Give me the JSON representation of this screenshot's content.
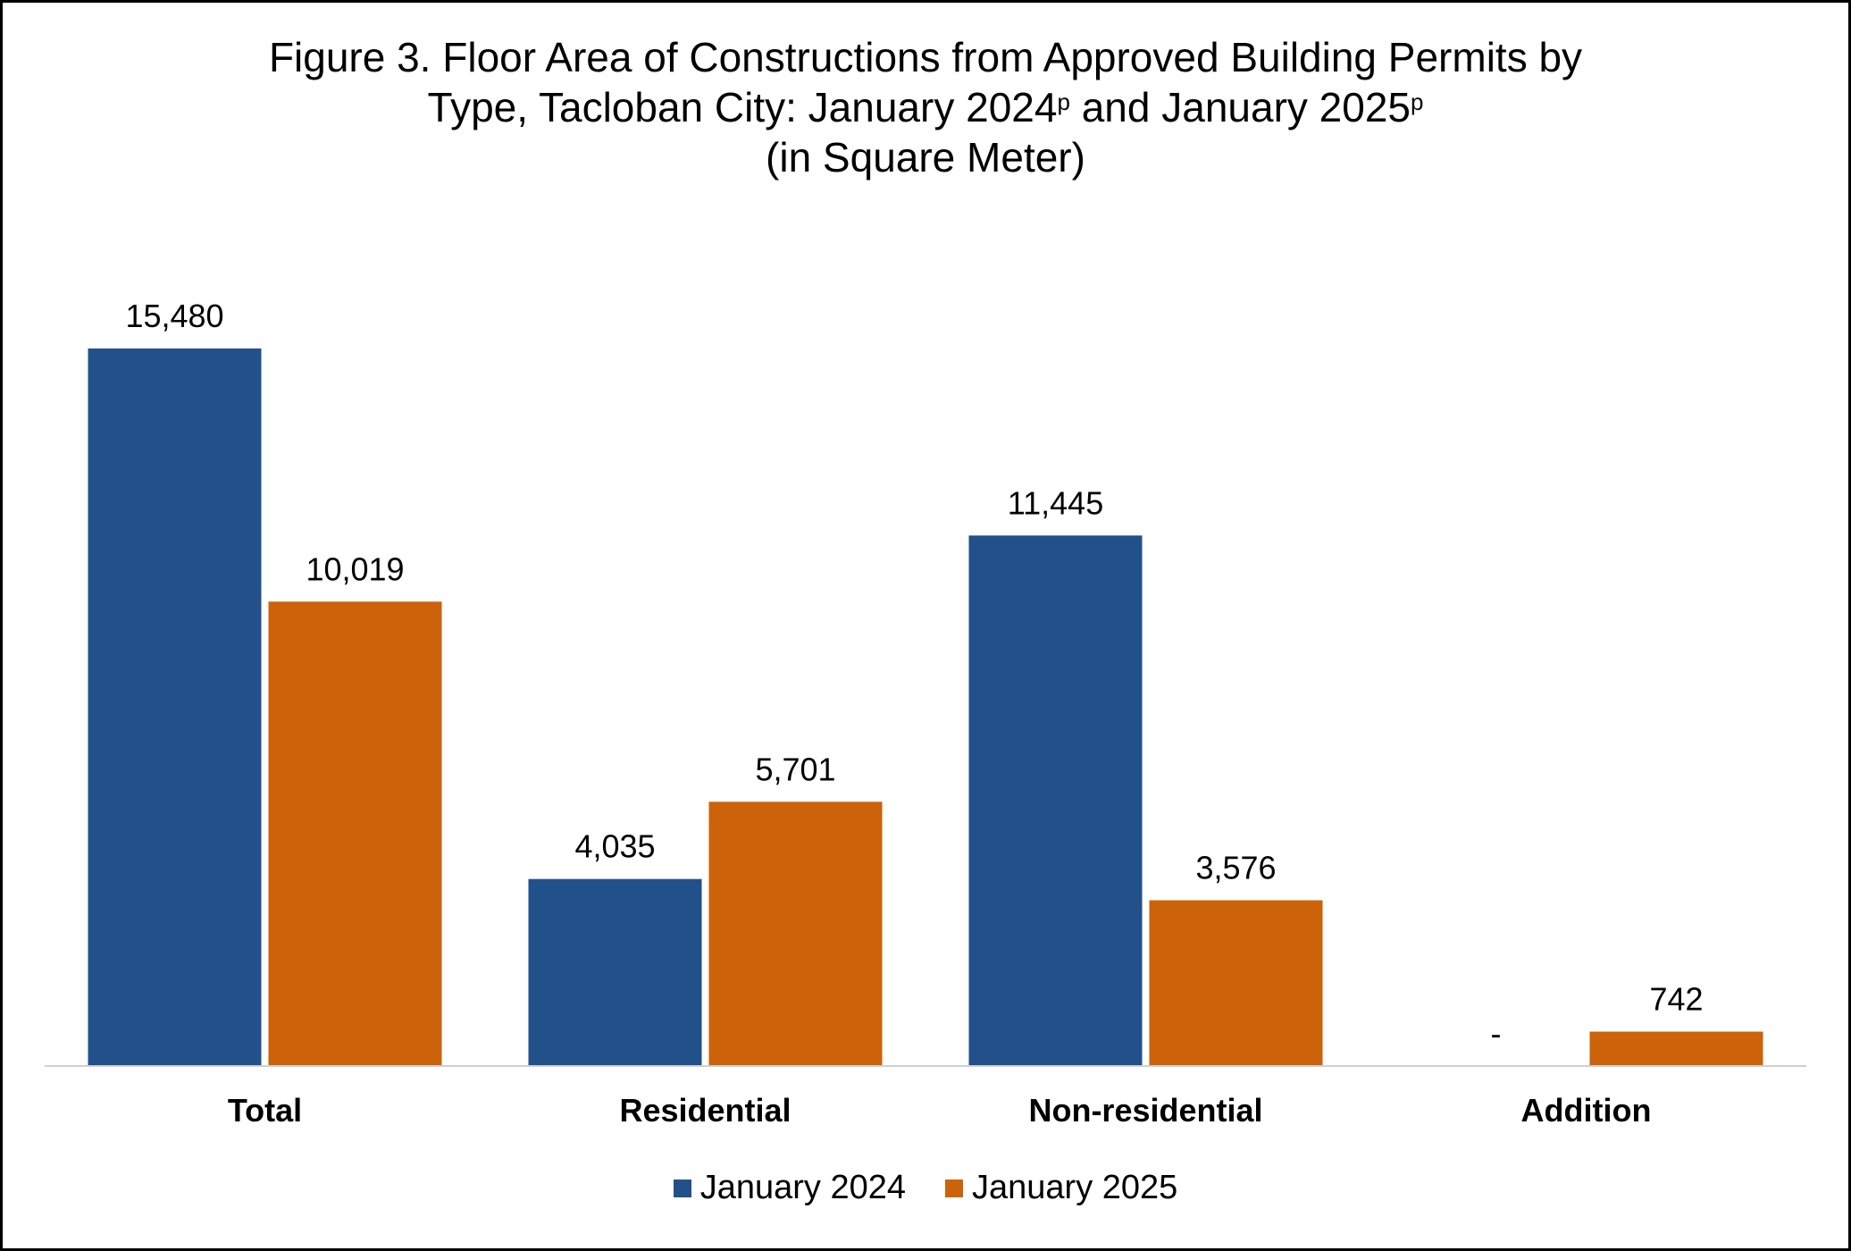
{
  "title": {
    "line1": "Figure 3. Floor Area of Constructions from Approved Building Permits by",
    "line2_a": "Type, Tacloban City: January 2024",
    "line2_sup1": "p",
    "line2_b": " and January 2025",
    "line2_sup2": "p",
    "line3": "(in Square Meter)"
  },
  "colors": {
    "january_2024": "#22508A",
    "january_2025": "#CC620A",
    "axis": "#D0D0D0"
  },
  "chart_data": {
    "type": "bar",
    "categories": [
      "Total",
      "Residential",
      "Non-residential",
      "Addition"
    ],
    "series": [
      {
        "name": "January 2024",
        "values": [
          15480,
          4035,
          11445,
          0
        ],
        "labels": [
          "15,480",
          "4,035",
          "11,445",
          "-"
        ]
      },
      {
        "name": "January 2025",
        "values": [
          10019,
          5701,
          3576,
          742
        ],
        "labels": [
          "10,019",
          "5,701",
          "3,576",
          "742"
        ]
      }
    ],
    "ylim": [
      0,
      15480
    ],
    "grid": false,
    "legend": "bottom-center",
    "xlabel": "",
    "ylabel": ""
  }
}
